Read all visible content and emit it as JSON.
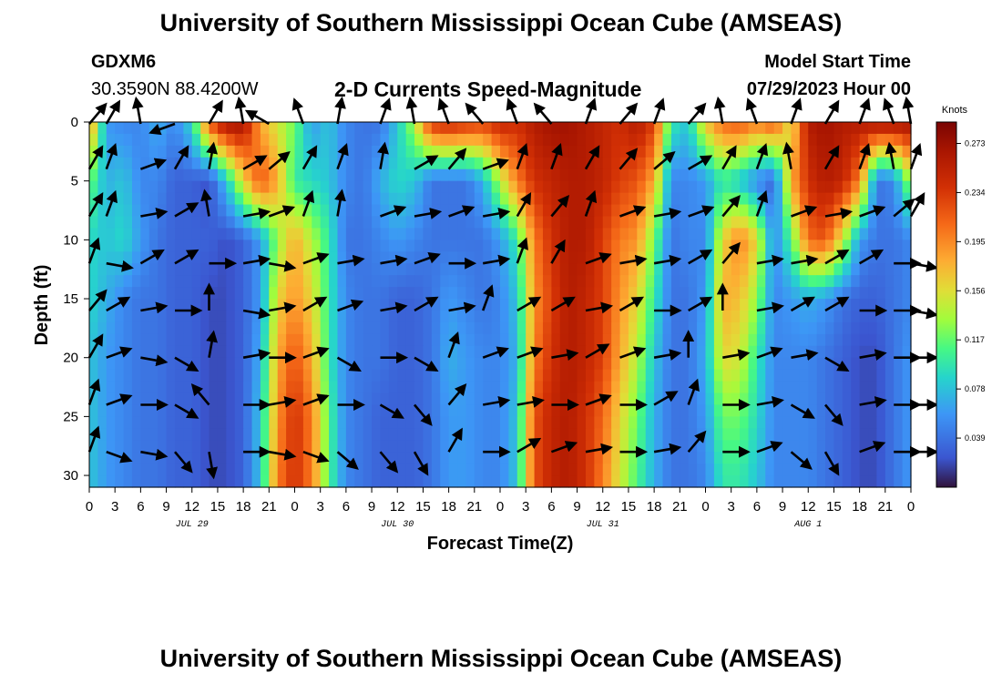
{
  "title": "University of Southern Mississippi Ocean Cube (AMSEAS)",
  "title_repeat": "University of Southern Mississippi Ocean Cube (AMSEAS)",
  "station": {
    "id": "GDXM6",
    "coordinates": "30.3590N  88.4200W"
  },
  "subtitle": "2-D Currents Speed-Magnitude",
  "model_start": {
    "label": "Model Start Time",
    "value": "07/29/2023 Hour 00"
  },
  "chart_data": {
    "type": "heatmap",
    "title": "2-D Currents Speed-Magnitude",
    "xlabel": "Forecast Time(Z)",
    "ylabel": "Depth (ft)",
    "colorbar_label": "Knots",
    "colorbar_ticks": [
      "0.273",
      "0.234",
      "0.195",
      "0.156",
      "0.117",
      "0.078",
      "0.039"
    ],
    "colorbar_range": [
      0.0,
      0.29
    ],
    "x_range_hours": [
      0,
      96
    ],
    "x_tick_labels": [
      "0",
      "3",
      "6",
      "9",
      "12",
      "15",
      "18",
      "21",
      "0",
      "3",
      "6",
      "9",
      "12",
      "15",
      "18",
      "21",
      "0",
      "3",
      "6",
      "9",
      "12",
      "15",
      "18",
      "21",
      "0",
      "3",
      "6",
      "9",
      "12",
      "15",
      "18",
      "21",
      "0"
    ],
    "date_labels": [
      "JUL 29",
      "JUL 30",
      "JUL 31",
      "AUG 1"
    ],
    "date_label_hours": [
      12,
      36,
      60,
      84
    ],
    "y_range_ft": [
      0,
      31
    ],
    "y_ticks": [
      0,
      5,
      10,
      15,
      20,
      25,
      30
    ],
    "speed_time_hours": [
      0,
      2,
      4,
      6,
      8,
      10,
      12,
      14,
      16,
      18,
      20,
      22,
      24,
      26,
      28,
      30,
      32,
      34,
      36,
      38,
      40,
      42,
      44,
      46,
      48,
      50,
      52,
      54,
      56,
      58,
      60,
      62,
      64,
      66,
      68,
      70,
      72,
      74,
      76,
      78,
      80,
      82,
      84,
      86,
      88,
      90,
      92,
      94,
      96
    ],
    "speed_depth_levels_ft": [
      0,
      5,
      10,
      15,
      20,
      25,
      30
    ],
    "speed_knots": [
      [
        0.2,
        0.06,
        0.05,
        0.05,
        0.07,
        0.05,
        0.09,
        0.22,
        0.27,
        0.27,
        0.18,
        0.15,
        0.12,
        0.06,
        0.08,
        0.05,
        0.04,
        0.04,
        0.08,
        0.14,
        0.24,
        0.25,
        0.24,
        0.23,
        0.25,
        0.24,
        0.26,
        0.27,
        0.27,
        0.26,
        0.25,
        0.24,
        0.26,
        0.23,
        0.1,
        0.08,
        0.17,
        0.21,
        0.22,
        0.2,
        0.22,
        0.15,
        0.26,
        0.27,
        0.26,
        0.26,
        0.27,
        0.27,
        0.27
      ],
      [
        0.12,
        0.07,
        0.08,
        0.05,
        0.05,
        0.03,
        0.03,
        0.02,
        0.08,
        0.16,
        0.22,
        0.18,
        0.1,
        0.09,
        0.08,
        0.05,
        0.04,
        0.07,
        0.09,
        0.08,
        0.04,
        0.04,
        0.04,
        0.07,
        0.14,
        0.2,
        0.24,
        0.25,
        0.26,
        0.26,
        0.25,
        0.23,
        0.22,
        0.18,
        0.05,
        0.05,
        0.06,
        0.1,
        0.08,
        0.05,
        0.03,
        0.18,
        0.24,
        0.26,
        0.25,
        0.2,
        0.04,
        0.05,
        0.14
      ],
      [
        0.09,
        0.08,
        0.09,
        0.06,
        0.04,
        0.03,
        0.03,
        0.03,
        0.02,
        0.03,
        0.06,
        0.13,
        0.18,
        0.14,
        0.1,
        0.04,
        0.04,
        0.05,
        0.06,
        0.05,
        0.04,
        0.04,
        0.04,
        0.04,
        0.06,
        0.1,
        0.2,
        0.24,
        0.26,
        0.26,
        0.23,
        0.2,
        0.19,
        0.12,
        0.04,
        0.05,
        0.05,
        0.16,
        0.2,
        0.16,
        0.05,
        0.11,
        0.21,
        0.22,
        0.15,
        0.06,
        0.04,
        0.04,
        0.05
      ],
      [
        0.09,
        0.07,
        0.05,
        0.04,
        0.04,
        0.03,
        0.03,
        0.02,
        0.02,
        0.03,
        0.06,
        0.16,
        0.19,
        0.16,
        0.1,
        0.05,
        0.04,
        0.04,
        0.03,
        0.03,
        0.04,
        0.06,
        0.05,
        0.04,
        0.05,
        0.08,
        0.19,
        0.23,
        0.26,
        0.25,
        0.23,
        0.19,
        0.16,
        0.1,
        0.04,
        0.04,
        0.06,
        0.18,
        0.17,
        0.13,
        0.05,
        0.06,
        0.07,
        0.06,
        0.04,
        0.03,
        0.03,
        0.04,
        0.05
      ],
      [
        0.08,
        0.06,
        0.05,
        0.04,
        0.04,
        0.03,
        0.03,
        0.02,
        0.02,
        0.03,
        0.07,
        0.18,
        0.22,
        0.18,
        0.1,
        0.05,
        0.04,
        0.04,
        0.03,
        0.03,
        0.04,
        0.07,
        0.06,
        0.05,
        0.05,
        0.07,
        0.2,
        0.24,
        0.26,
        0.25,
        0.23,
        0.18,
        0.14,
        0.08,
        0.04,
        0.04,
        0.07,
        0.16,
        0.15,
        0.1,
        0.05,
        0.05,
        0.05,
        0.04,
        0.03,
        0.02,
        0.02,
        0.04,
        0.06
      ],
      [
        0.08,
        0.06,
        0.05,
        0.04,
        0.04,
        0.03,
        0.03,
        0.02,
        0.02,
        0.03,
        0.08,
        0.19,
        0.24,
        0.2,
        0.11,
        0.05,
        0.04,
        0.03,
        0.03,
        0.03,
        0.04,
        0.06,
        0.06,
        0.05,
        0.05,
        0.08,
        0.22,
        0.25,
        0.26,
        0.24,
        0.21,
        0.16,
        0.12,
        0.07,
        0.04,
        0.04,
        0.06,
        0.12,
        0.12,
        0.09,
        0.05,
        0.05,
        0.05,
        0.04,
        0.03,
        0.02,
        0.02,
        0.04,
        0.06
      ],
      [
        0.08,
        0.06,
        0.05,
        0.04,
        0.04,
        0.03,
        0.03,
        0.02,
        0.02,
        0.03,
        0.08,
        0.2,
        0.24,
        0.2,
        0.11,
        0.05,
        0.04,
        0.03,
        0.03,
        0.03,
        0.04,
        0.06,
        0.06,
        0.05,
        0.05,
        0.08,
        0.22,
        0.25,
        0.26,
        0.24,
        0.2,
        0.15,
        0.11,
        0.07,
        0.04,
        0.04,
        0.05,
        0.1,
        0.1,
        0.08,
        0.05,
        0.05,
        0.05,
        0.04,
        0.03,
        0.02,
        0.02,
        0.04,
        0.06
      ]
    ],
    "vector_time_hours": [
      0,
      2,
      6,
      10,
      14,
      18,
      21,
      25,
      29,
      34,
      38,
      42,
      46,
      50,
      54,
      58,
      62,
      66,
      70,
      74,
      78,
      82,
      86,
      90,
      94,
      96
    ],
    "vector_depth_levels_ft": [
      0,
      4,
      8,
      12,
      16,
      20,
      24,
      28
    ],
    "vector_direction_deg": [
      [
        40,
        30,
        350,
        250,
        30,
        350,
        300,
        340,
        10,
        20,
        350,
        340,
        320,
        340,
        320,
        20,
        40,
        20,
        40,
        350,
        340,
        20,
        30,
        20,
        340,
        350
      ],
      [
        30,
        20,
        70,
        30,
        10,
        60,
        50,
        30,
        20,
        10,
        60,
        40,
        70,
        20,
        20,
        30,
        40,
        50,
        60,
        30,
        20,
        350,
        30,
        20,
        350,
        20
      ],
      [
        30,
        20,
        80,
        60,
        350,
        80,
        70,
        20,
        10,
        70,
        80,
        70,
        80,
        30,
        40,
        20,
        70,
        80,
        70,
        40,
        20,
        70,
        80,
        70,
        50,
        30
      ],
      [
        20,
        100,
        60,
        60,
        90,
        80,
        100,
        70,
        80,
        80,
        70,
        90,
        80,
        20,
        30,
        70,
        80,
        80,
        60,
        40,
        80,
        80,
        60,
        60,
        90,
        100
      ],
      [
        40,
        60,
        80,
        90,
        0,
        100,
        80,
        60,
        70,
        80,
        60,
        80,
        20,
        60,
        60,
        80,
        60,
        90,
        60,
        0,
        80,
        60,
        60,
        90,
        90,
        100
      ],
      [
        30,
        70,
        100,
        120,
        10,
        80,
        90,
        70,
        120,
        90,
        120,
        20,
        70,
        70,
        80,
        60,
        70,
        80,
        0,
        80,
        70,
        80,
        120,
        80,
        90,
        90
      ],
      [
        20,
        70,
        90,
        120,
        320,
        90,
        80,
        70,
        90,
        120,
        140,
        40,
        80,
        80,
        90,
        70,
        90,
        60,
        20,
        90,
        80,
        120,
        140,
        80,
        90,
        90
      ],
      [
        20,
        110,
        100,
        140,
        170,
        90,
        100,
        110,
        130,
        140,
        150,
        30,
        90,
        60,
        70,
        80,
        90,
        80,
        40,
        90,
        70,
        130,
        150,
        70,
        90,
        90
      ]
    ]
  }
}
